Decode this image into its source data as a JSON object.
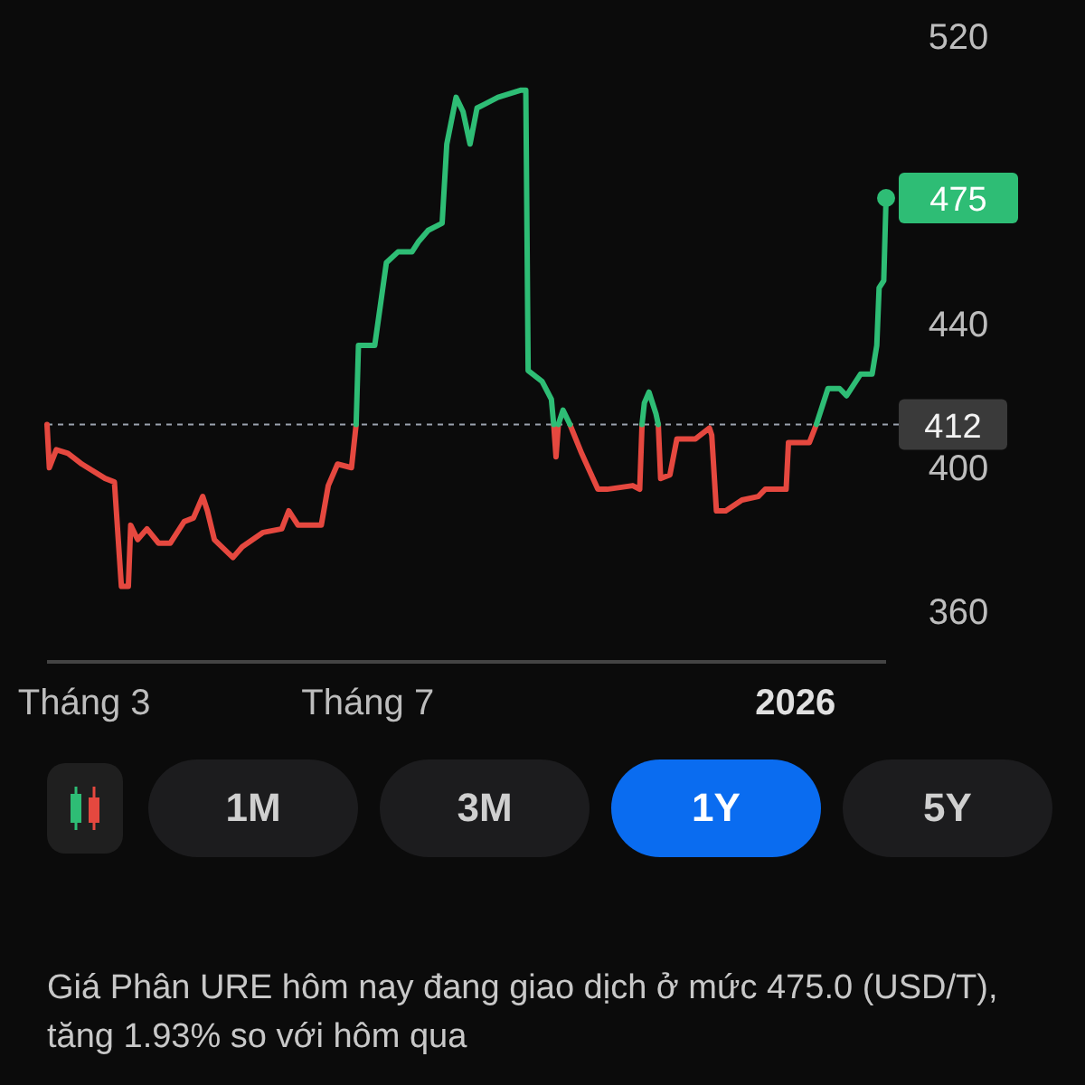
{
  "chart_data": [
    {
      "type": "line",
      "xlim": [
        "2025-02-13",
        "2026-02-09"
      ],
      "ylim": [
        346,
        520
      ],
      "xticks": [
        {
          "value": "2025-03-01",
          "label": "Tháng 3"
        },
        {
          "value": "2025-07-01",
          "label": "Tháng 7"
        },
        {
          "value": "2026-01-01",
          "label": "2026"
        }
      ],
      "yticks": [
        360,
        400,
        440,
        520
      ],
      "ref_lines": [
        {
          "axis": "y",
          "value": 412,
          "label": "412",
          "color": "#9ca3af",
          "line_style": "dashed"
        }
      ],
      "annotations": [
        {
          "text": "475",
          "x": "2026-02-09",
          "y": 475
        }
      ],
      "series": [
        {
          "color": "#e5483f",
          "x": [
            "2025-02-13",
            "2025-02-14",
            "2025-02-17",
            "2025-02-22",
            "2025-02-28",
            "2025-03-10",
            "2025-03-14",
            "2025-03-17",
            "2025-03-20",
            "2025-03-21",
            "2025-03-24",
            "2025-03-28",
            "2025-04-02",
            "2025-04-07",
            "2025-04-13",
            "2025-04-17",
            "2025-04-21",
            "2025-04-23",
            "2025-04-26",
            "2025-05-04",
            "2025-05-08",
            "2025-05-17",
            "2025-05-25",
            "2025-05-28",
            "2025-06-01",
            "2025-06-11",
            "2025-06-14",
            "2025-06-18",
            "2025-06-24",
            "2025-06-26",
            "2025-08-01",
            "2025-09-19",
            "2025-09-20",
            "2025-09-21",
            "2025-09-23",
            "2025-09-26",
            "2025-10-01",
            "2025-10-08",
            "2025-10-12",
            "2025-10-23",
            "2025-10-26",
            "2025-10-27",
            "2025-10-30",
            "2025-11-03",
            "2025-11-04",
            "2025-11-08",
            "2025-11-11",
            "2025-11-19",
            "2025-11-25",
            "2025-11-26",
            "2025-11-28",
            "2025-12-02",
            "2025-12-09",
            "2025-12-16",
            "2025-12-19",
            "2025-12-28",
            "2025-12-29",
            "2026-01-07",
            "2026-01-10"
          ],
          "values": [
            412,
            400,
            405,
            404,
            401,
            397,
            396,
            367,
            367,
            384,
            380,
            383,
            379,
            379,
            385,
            386,
            392,
            388,
            380,
            375,
            378,
            382,
            383,
            388,
            384,
            384,
            395,
            401,
            400,
            412,
            null,
            412,
            403,
            412,
            null,
            412,
            404,
            394,
            394,
            395,
            394,
            412,
            null,
            412,
            397,
            398,
            408,
            408,
            411,
            409,
            388,
            388,
            391,
            392,
            394,
            394,
            407,
            407,
            412
          ]
        },
        {
          "color": "#2ebd75",
          "x": [
            "2025-06-26",
            "2025-06-27",
            "2025-07-04",
            "2025-07-09",
            "2025-07-14",
            "2025-07-20",
            "2025-07-23",
            "2025-07-27",
            "2025-08-02",
            "2025-08-04",
            "2025-08-08",
            "2025-08-11",
            "2025-08-14",
            "2025-08-17",
            "2025-08-20",
            "2025-08-26",
            "2025-09-05",
            "2025-09-07",
            "2025-09-08",
            "2025-09-10",
            "2025-09-14",
            "2025-09-18",
            "2025-09-19",
            "2025-09-20",
            "2025-09-21",
            "2025-09-23",
            "2025-09-26",
            "2025-10-12",
            "2025-10-27",
            "2025-10-28",
            "2025-10-30",
            "2025-11-02",
            "2025-11-03",
            "2025-12-01",
            "2026-01-10",
            "2026-01-15",
            "2026-01-20",
            "2026-01-23",
            "2026-01-29",
            "2026-02-03",
            "2026-02-05",
            "2026-02-06",
            "2026-02-08",
            "2026-02-09"
          ],
          "values": [
            412,
            434,
            434,
            457,
            460,
            460,
            463,
            466,
            468,
            490,
            503,
            499,
            490,
            500,
            501,
            503,
            505,
            505,
            427,
            426,
            424,
            419,
            412,
            null,
            412,
            416,
            412,
            null,
            412,
            418,
            421,
            415,
            412,
            null,
            412,
            422,
            422,
            420,
            426,
            426,
            434,
            450,
            452,
            475
          ]
        }
      ]
    },
    {
      "type": "other",
      "annotations": [
        "1M",
        "3M",
        "1Y",
        "5Y",
        "Giá Phân URE hôm nay đang giao dịch ở mức 475.0 (USD/T), tăng 1.93% so với hôm qua"
      ]
    }
  ]
}
